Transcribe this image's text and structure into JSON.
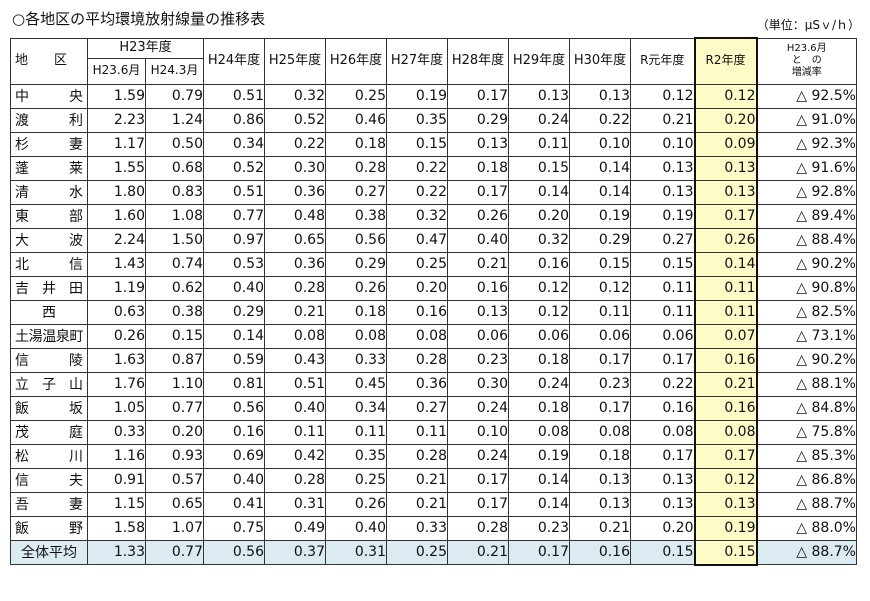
{
  "title": "○各地区の平均環境放射線量の推移表",
  "unit": "（単位：μSｖ/ｈ）",
  "header": {
    "area": "地　　区",
    "h23": "H23年度",
    "h23_6": "H23.6月",
    "h24_3": "H24.3月",
    "h24": "H24年度",
    "h25": "H25年度",
    "h26": "H26年度",
    "h27": "H27年度",
    "h28": "H28年度",
    "h29": "H29年度",
    "h30": "H30年度",
    "r1": "R元年度",
    "r2": "R2年度",
    "rate_line1": "H23.6月",
    "rate_line2": "と　の",
    "rate_line3": "増減率"
  },
  "rows": [
    {
      "name": "中央",
      "v": [
        "1.59",
        "0.79",
        "0.51",
        "0.32",
        "0.25",
        "0.19",
        "0.17",
        "0.13",
        "0.13",
        "0.12",
        "0.12"
      ],
      "rate": "△ 92.5%"
    },
    {
      "name": "渡利",
      "v": [
        "2.23",
        "1.24",
        "0.86",
        "0.52",
        "0.46",
        "0.35",
        "0.29",
        "0.24",
        "0.22",
        "0.21",
        "0.20"
      ],
      "rate": "△ 91.0%"
    },
    {
      "name": "杉妻",
      "v": [
        "1.17",
        "0.50",
        "0.34",
        "0.22",
        "0.18",
        "0.15",
        "0.13",
        "0.11",
        "0.10",
        "0.10",
        "0.09"
      ],
      "rate": "△ 92.3%"
    },
    {
      "name": "蓬莱",
      "v": [
        "1.55",
        "0.68",
        "0.52",
        "0.30",
        "0.28",
        "0.22",
        "0.18",
        "0.15",
        "0.14",
        "0.13",
        "0.13"
      ],
      "rate": "△ 91.6%"
    },
    {
      "name": "清水",
      "v": [
        "1.80",
        "0.83",
        "0.51",
        "0.36",
        "0.27",
        "0.22",
        "0.17",
        "0.14",
        "0.14",
        "0.13",
        "0.13"
      ],
      "rate": "△ 92.8%"
    },
    {
      "name": "東部",
      "v": [
        "1.60",
        "1.08",
        "0.77",
        "0.48",
        "0.38",
        "0.32",
        "0.26",
        "0.20",
        "0.19",
        "0.19",
        "0.17"
      ],
      "rate": "△ 89.4%"
    },
    {
      "name": "大波",
      "v": [
        "2.24",
        "1.50",
        "0.97",
        "0.65",
        "0.56",
        "0.47",
        "0.40",
        "0.32",
        "0.29",
        "0.27",
        "0.26"
      ],
      "rate": "△ 88.4%"
    },
    {
      "name": "北信",
      "v": [
        "1.43",
        "0.74",
        "0.53",
        "0.36",
        "0.29",
        "0.25",
        "0.21",
        "0.16",
        "0.15",
        "0.15",
        "0.14"
      ],
      "rate": "△ 90.2%"
    },
    {
      "name": "吉井田",
      "v": [
        "1.19",
        "0.62",
        "0.40",
        "0.28",
        "0.26",
        "0.20",
        "0.16",
        "0.12",
        "0.12",
        "0.11",
        "0.11"
      ],
      "rate": "△ 90.8%"
    },
    {
      "name": "西",
      "v": [
        "0.63",
        "0.38",
        "0.29",
        "0.21",
        "0.18",
        "0.16",
        "0.13",
        "0.12",
        "0.11",
        "0.11",
        "0.11"
      ],
      "rate": "△ 82.5%"
    },
    {
      "name": "土湯温泉町",
      "v": [
        "0.26",
        "0.15",
        "0.14",
        "0.08",
        "0.08",
        "0.08",
        "0.06",
        "0.06",
        "0.06",
        "0.06",
        "0.07"
      ],
      "rate": "△ 73.1%"
    },
    {
      "name": "信陵",
      "v": [
        "1.63",
        "0.87",
        "0.59",
        "0.43",
        "0.33",
        "0.28",
        "0.23",
        "0.18",
        "0.17",
        "0.17",
        "0.16"
      ],
      "rate": "△ 90.2%"
    },
    {
      "name": "立子山",
      "v": [
        "1.76",
        "1.10",
        "0.81",
        "0.51",
        "0.45",
        "0.36",
        "0.30",
        "0.24",
        "0.23",
        "0.22",
        "0.21"
      ],
      "rate": "△ 88.1%"
    },
    {
      "name": "飯坂",
      "v": [
        "1.05",
        "0.77",
        "0.56",
        "0.40",
        "0.34",
        "0.27",
        "0.24",
        "0.18",
        "0.17",
        "0.16",
        "0.16"
      ],
      "rate": "△ 84.8%"
    },
    {
      "name": "茂庭",
      "v": [
        "0.33",
        "0.20",
        "0.16",
        "0.11",
        "0.11",
        "0.11",
        "0.10",
        "0.08",
        "0.08",
        "0.08",
        "0.08"
      ],
      "rate": "△ 75.8%"
    },
    {
      "name": "松川",
      "v": [
        "1.16",
        "0.93",
        "0.69",
        "0.42",
        "0.35",
        "0.28",
        "0.24",
        "0.19",
        "0.18",
        "0.17",
        "0.17"
      ],
      "rate": "△ 85.3%"
    },
    {
      "name": "信夫",
      "v": [
        "0.91",
        "0.57",
        "0.40",
        "0.28",
        "0.25",
        "0.21",
        "0.17",
        "0.14",
        "0.13",
        "0.13",
        "0.12"
      ],
      "rate": "△ 86.8%"
    },
    {
      "name": "吾妻",
      "v": [
        "1.15",
        "0.65",
        "0.41",
        "0.31",
        "0.26",
        "0.21",
        "0.17",
        "0.14",
        "0.13",
        "0.13",
        "0.13"
      ],
      "rate": "△ 88.7%"
    },
    {
      "name": "飯野",
      "v": [
        "1.58",
        "1.07",
        "0.75",
        "0.49",
        "0.40",
        "0.33",
        "0.28",
        "0.23",
        "0.21",
        "0.20",
        "0.19"
      ],
      "rate": "△ 88.0%"
    }
  ],
  "total": {
    "name": "全体平均",
    "v": [
      "1.33",
      "0.77",
      "0.56",
      "0.37",
      "0.31",
      "0.25",
      "0.21",
      "0.17",
      "0.16",
      "0.15",
      "0.15"
    ],
    "rate": "△ 88.7%"
  },
  "colors": {
    "highlight": "#fdfbc6",
    "total_row": "#dcebf1"
  }
}
